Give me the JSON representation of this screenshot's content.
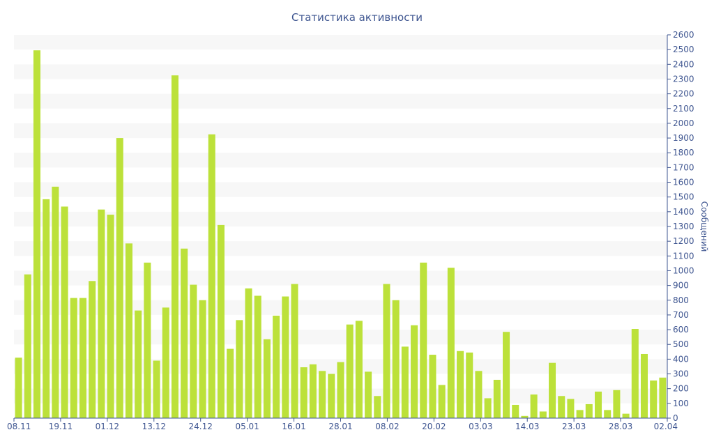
{
  "chart_data": {
    "type": "bar",
    "title": "Статистика активности",
    "ylabel": "Сообщений",
    "xlabel": "",
    "ylim": [
      0,
      2600
    ],
    "y_tick_step": 100,
    "x_tick_labels": [
      "08.11",
      "19.11",
      "01.12",
      "13.12",
      "24.12",
      "05.01",
      "16.01",
      "28.01",
      "08.02",
      "20.02",
      "03.03",
      "14.03",
      "23.03",
      "28.03",
      "02.04"
    ],
    "values": [
      410,
      975,
      2495,
      1485,
      1570,
      1435,
      815,
      815,
      930,
      1415,
      1380,
      1900,
      1185,
      730,
      1055,
      390,
      750,
      2325,
      1150,
      905,
      800,
      1925,
      1310,
      470,
      665,
      880,
      830,
      535,
      695,
      825,
      910,
      345,
      365,
      320,
      300,
      380,
      635,
      660,
      315,
      150,
      910,
      800,
      485,
      630,
      1055,
      430,
      225,
      1020,
      455,
      445,
      320,
      135,
      260,
      585,
      90,
      15,
      160,
      45,
      375,
      150,
      130,
      55,
      95,
      180,
      55,
      190,
      30,
      605,
      435,
      255,
      275
    ],
    "bar_color": "#bce13a",
    "band_color": "#f7f7f7",
    "axis_color": "#3e5590"
  }
}
